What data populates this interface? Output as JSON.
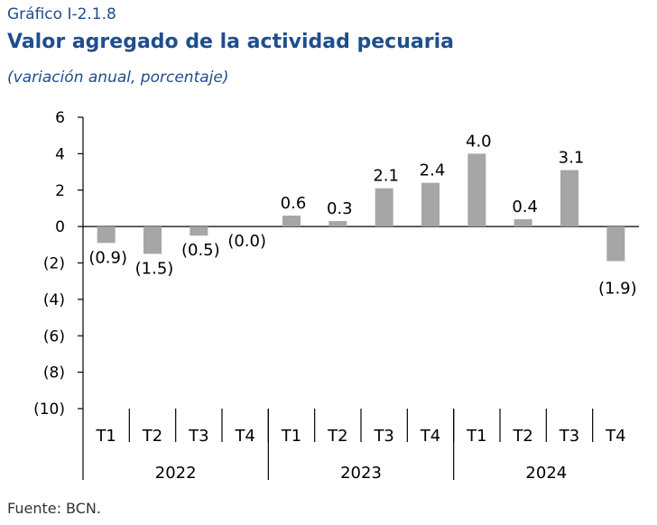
{
  "header": {
    "label": "Gráfico I-2.1.8",
    "title": "Valor agregado de la actividad pecuaria",
    "subtitle": "(variación anual, porcentaje)"
  },
  "footer": {
    "source": "Fuente: BCN."
  },
  "colors": {
    "bar": "#a6a6a6",
    "text": "#1f4e8c"
  },
  "chart_data": {
    "type": "bar",
    "categories": [
      "T1",
      "T2",
      "T3",
      "T4",
      "T1",
      "T2",
      "T3",
      "T4",
      "T1",
      "T2",
      "T3",
      "T4"
    ],
    "groups": [
      {
        "label": "2022",
        "count": 4
      },
      {
        "label": "2023",
        "count": 4
      },
      {
        "label": "2024",
        "count": 4
      }
    ],
    "values": [
      -0.9,
      -1.5,
      -0.5,
      -0.0,
      0.6,
      0.3,
      2.1,
      2.4,
      4.0,
      0.4,
      3.1,
      -1.9
    ],
    "data_labels": [
      "(0.9)",
      "(1.5)",
      "(0.5)",
      "(0.0)",
      "0.6",
      "0.3",
      "2.1",
      "2.4",
      "4.0",
      "0.4",
      "3.1",
      "(1.9)"
    ],
    "yticks": [
      6,
      4,
      2,
      0,
      -2,
      -4,
      -6,
      -8,
      -10
    ],
    "ytick_labels": [
      "6",
      "4",
      "2",
      "0",
      "(2)",
      "(4)",
      "(6)",
      "(8)",
      "(10)"
    ],
    "ylim": [
      -10,
      6
    ],
    "grid": false,
    "legend": "none"
  }
}
